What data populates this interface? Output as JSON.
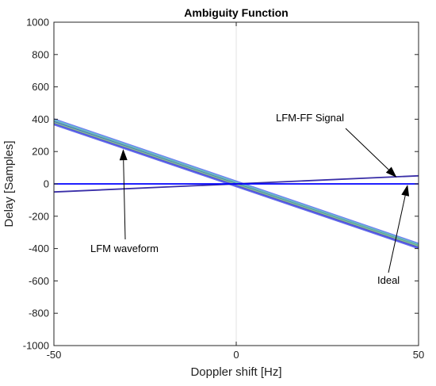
{
  "chart_data": {
    "type": "line",
    "title": "Ambiguity Function",
    "xlabel": "Doppler shift [Hz]",
    "ylabel": "Delay [Samples]",
    "xlim": [
      -50,
      50
    ],
    "ylim": [
      -1000,
      1000
    ],
    "x_ticks": [
      -50,
      0,
      50
    ],
    "y_ticks": [
      1000,
      800,
      600,
      400,
      200,
      0,
      -200,
      -400,
      -600,
      -800,
      -1000
    ],
    "grid": "zero-lines only",
    "series": [
      {
        "name": "LFM waveform",
        "color": "#4a55e8",
        "x": [
          -50,
          50
        ],
        "y": [
          380,
          -385
        ],
        "band": [
          {
            "x": [
              -50,
              50
            ],
            "y": [
              400,
              -370
            ],
            "color": "#5560f0"
          },
          {
            "x": [
              -50,
              50
            ],
            "y": [
              395,
              -375
            ],
            "color": "#6ab8d8"
          },
          {
            "x": [
              -50,
              50
            ],
            "y": [
              388,
              -380
            ],
            "color": "#66c2a0"
          },
          {
            "x": [
              -50,
              50
            ],
            "y": [
              382,
              -386
            ],
            "color": "#3a45d8"
          },
          {
            "x": [
              -50,
              50
            ],
            "y": [
              375,
              -392
            ],
            "color": "#5a3fc0"
          },
          {
            "x": [
              -50,
              50
            ],
            "y": [
              368,
              -398
            ],
            "color": "#4a55e8"
          }
        ]
      },
      {
        "name": "LFM-FF Signal",
        "color": "#3a2fa8",
        "x": [
          -50,
          50
        ],
        "y": [
          -50,
          50
        ]
      },
      {
        "name": "Ideal",
        "color": "#0000ff",
        "x": [
          -50,
          50
        ],
        "y": [
          0,
          0
        ]
      }
    ],
    "annotations": [
      {
        "text": "LFM-FF Signal",
        "points_to": [
          44,
          40
        ]
      },
      {
        "text": "LFM waveform",
        "points_to": [
          -31,
          215
        ]
      },
      {
        "text": "Ideal",
        "points_to": [
          47,
          -5
        ]
      }
    ]
  }
}
